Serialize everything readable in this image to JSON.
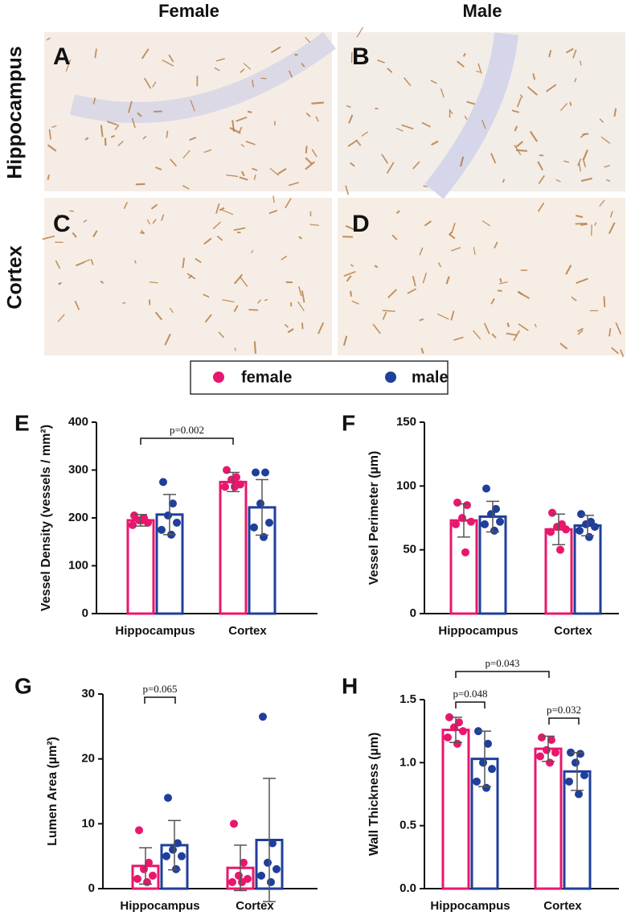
{
  "figure": {
    "columns": [
      "Female",
      "Male"
    ],
    "rows": [
      "Hippocampus",
      "Cortex"
    ],
    "image_letters": [
      "A",
      "B",
      "C",
      "D"
    ],
    "panel_letters": [
      "E",
      "F",
      "G",
      "H"
    ]
  },
  "chart_data": [
    {
      "type": "bar",
      "y_label": "Vessel Density (vessels / mm²)",
      "categories": [
        "Hippocampus",
        "Cortex"
      ],
      "ylim": [
        0,
        400
      ],
      "yticks": [
        0,
        100,
        200,
        300,
        400
      ],
      "annotations": [
        "p=0.002"
      ],
      "series": [
        {
          "name": "female",
          "color": "#e8176d",
          "values": [
            195,
            275
          ],
          "errors": [
            12,
            20
          ],
          "points": [
            [
              205,
              200,
              195,
              190,
              185,
              195
            ],
            [
              300,
              285,
              280,
              270,
              265,
              265
            ]
          ]
        },
        {
          "name": "male",
          "color": "#1f3f9a",
          "values": [
            207,
            222
          ],
          "errors": [
            42,
            58
          ],
          "points": [
            [
              275,
              230,
              205,
              190,
              175,
              165
            ],
            [
              295,
              295,
              230,
              190,
              180,
              160
            ]
          ]
        }
      ]
    },
    {
      "type": "bar",
      "y_label": "Vessel Perimeter (µm)",
      "categories": [
        "Hippocampus",
        "Cortex"
      ],
      "ylim": [
        0,
        150
      ],
      "yticks": [
        0,
        50,
        100,
        150
      ],
      "annotations": [],
      "series": [
        {
          "name": "female",
          "color": "#e8176d",
          "values": [
            73,
            66
          ],
          "errors": [
            13,
            12
          ],
          "points": [
            [
              87,
              85,
              75,
              72,
              70,
              48
            ],
            [
              79,
              70,
              68,
              66,
              64,
              50
            ]
          ]
        },
        {
          "name": "male",
          "color": "#1f3f9a",
          "values": [
            76,
            69
          ],
          "errors": [
            12,
            8
          ],
          "points": [
            [
              98,
              82,
              78,
              72,
              70,
              65
            ],
            [
              78,
              72,
              70,
              68,
              65,
              60
            ]
          ]
        }
      ]
    },
    {
      "type": "bar",
      "y_label": "Lumen Area (µm²)",
      "categories": [
        "Hippocampus",
        "Cortex"
      ],
      "ylim": [
        0,
        30
      ],
      "yticks": [
        0,
        10,
        20,
        30
      ],
      "annotations": [
        "p=0.065"
      ],
      "series": [
        {
          "name": "female",
          "color": "#e8176d",
          "values": [
            3.5,
            3.2
          ],
          "errors": [
            2.8,
            3.5
          ],
          "points": [
            [
              9,
              4,
              3,
              2,
              1.5,
              1
            ],
            [
              10,
              4,
              2,
              1.5,
              1,
              1
            ]
          ]
        },
        {
          "name": "male",
          "color": "#1f3f9a",
          "values": [
            6.7,
            7.5
          ],
          "errors": [
            3.8,
            9.5
          ],
          "points": [
            [
              14,
              7,
              6,
              5,
              5,
              3
            ],
            [
              26.5,
              7,
              4,
              3,
              2,
              1
            ]
          ]
        }
      ]
    },
    {
      "type": "bar",
      "y_label": "Wall Thickness (µm)",
      "categories": [
        "Hippocampus",
        "Cortex"
      ],
      "ylim": [
        0,
        1.5
      ],
      "yticks": [
        {
          "value": 0,
          "label": "0.0"
        },
        0.5,
        {
          "value": 1,
          "label": "1.0"
        },
        1.5
      ],
      "annotations": [
        "p=0.048",
        "p=0.043",
        "p=0.032"
      ],
      "series": [
        {
          "name": "female",
          "color": "#e8176d",
          "values": [
            1.26,
            1.11
          ],
          "errors": [
            0.1,
            0.1
          ],
          "points": [
            [
              1.36,
              1.32,
              1.28,
              1.25,
              1.2,
              1.15
            ],
            [
              1.2,
              1.18,
              1.1,
              1.08,
              1.05,
              1.0
            ]
          ]
        },
        {
          "name": "male",
          "color": "#1f3f9a",
          "values": [
            1.03,
            0.93
          ],
          "errors": [
            0.22,
            0.15
          ],
          "points": [
            [
              1.25,
              1.15,
              1.0,
              0.95,
              0.85,
              0.8
            ],
            [
              1.08,
              1.07,
              1.0,
              0.9,
              0.85,
              0.75
            ]
          ]
        }
      ]
    }
  ]
}
